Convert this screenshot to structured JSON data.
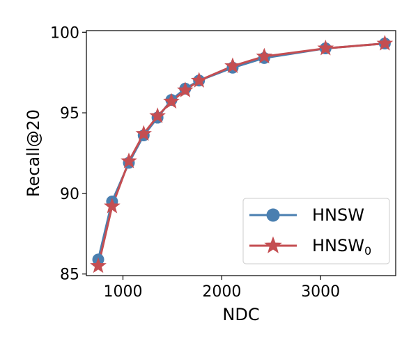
{
  "chart_data": {
    "type": "line",
    "xlabel": "NDC",
    "ylabel": "Recall@20",
    "xlim": [
      630,
      3760
    ],
    "ylim": [
      84.9,
      100.1
    ],
    "xticks": [
      1000,
      2000,
      3000
    ],
    "yticks": [
      85,
      90,
      95,
      100
    ],
    "grid": false,
    "legend_position": "lower-right",
    "series": [
      {
        "name": "HNSW",
        "name_subscript": "",
        "marker": "circle",
        "color": "#4a7fb0",
        "x": [
          750,
          890,
          1060,
          1210,
          1350,
          1490,
          1630,
          1770,
          2110,
          2430,
          3050,
          3650
        ],
        "y": [
          85.9,
          89.5,
          91.9,
          93.6,
          94.7,
          95.8,
          96.5,
          97.0,
          97.8,
          98.4,
          99.0,
          99.3
        ]
      },
      {
        "name": "HNSW",
        "name_subscript": "0",
        "marker": "star",
        "color": "#c44e52",
        "x": [
          750,
          890,
          1060,
          1210,
          1350,
          1490,
          1630,
          1770,
          2110,
          2430,
          3050,
          3650
        ],
        "y": [
          85.5,
          89.2,
          92.0,
          93.7,
          94.8,
          95.7,
          96.4,
          97.0,
          97.9,
          98.5,
          99.0,
          99.3
        ]
      }
    ]
  }
}
